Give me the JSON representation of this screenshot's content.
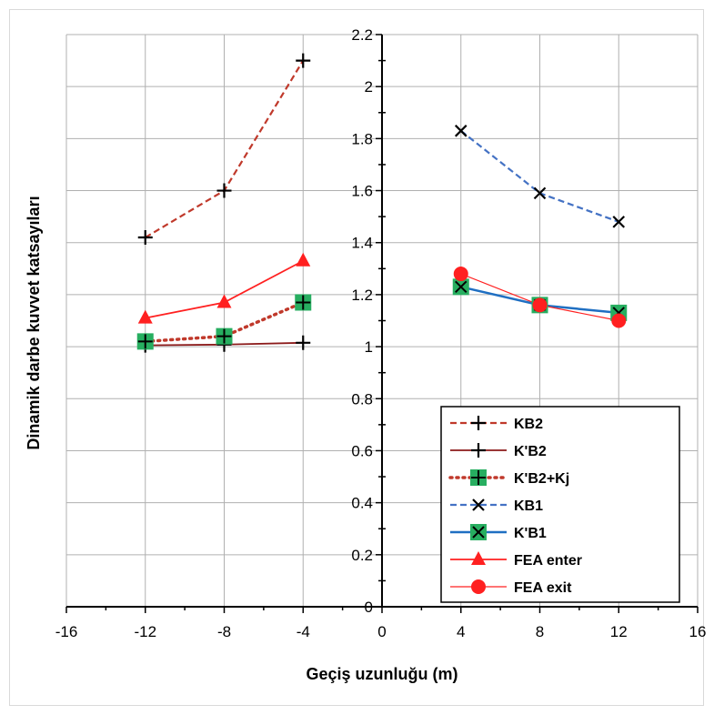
{
  "chart_data": {
    "type": "line",
    "xlabel": "Geçiş uzunluğu (m)",
    "ylabel": "Dinamik darbe kuvvet katsayıları",
    "xlim": [
      -16,
      16
    ],
    "ylim": [
      0,
      2.2
    ],
    "x_ticks": [
      -16,
      -12,
      -8,
      -4,
      0,
      4,
      8,
      12,
      16
    ],
    "x_tick_labels": [
      "-16",
      "-12",
      "-8",
      "-4",
      "0",
      "4",
      "8",
      "12",
      "16"
    ],
    "y_ticks": [
      0,
      0.2,
      0.4,
      0.6,
      0.8,
      1.0,
      1.2,
      1.4,
      1.6,
      1.8,
      2.0,
      2.2
    ],
    "y_tick_labels": [
      "0",
      "0.2",
      "0.4",
      "0.6",
      "0.8",
      "1",
      "1.2",
      "1.4",
      "1.6",
      "1.8",
      "2",
      "2.2"
    ],
    "grid": true,
    "legend_position": "bottom-right",
    "series": [
      {
        "name": "KB2",
        "x": [
          -12,
          -8,
          -4
        ],
        "y": [
          1.42,
          1.6,
          2.1
        ],
        "color": "#c0392b",
        "line": "dashed",
        "marker": "plus"
      },
      {
        "name": "K'B2",
        "x": [
          -12,
          -8,
          -4
        ],
        "y": [
          1.005,
          1.008,
          1.015
        ],
        "color": "#8b1a1a",
        "line": "solid",
        "marker": "plus"
      },
      {
        "name": "K'B2+Kj",
        "x": [
          -12,
          -8,
          -4
        ],
        "y": [
          1.02,
          1.04,
          1.17
        ],
        "color": "#c0392b",
        "line": "dotted",
        "marker": "green-square-plus"
      },
      {
        "name": "KB1",
        "x": [
          4,
          8,
          12
        ],
        "y": [
          1.83,
          1.59,
          1.48
        ],
        "color": "#4472c4",
        "line": "dashed",
        "marker": "x"
      },
      {
        "name": "K'B1",
        "x": [
          4,
          8,
          12
        ],
        "y": [
          1.23,
          1.16,
          1.13
        ],
        "color": "#1f6fc2",
        "line": "solid",
        "marker": "green-square-x"
      },
      {
        "name": "FEA enter",
        "x": [
          -12,
          -8,
          -4
        ],
        "y": [
          1.11,
          1.17,
          1.33
        ],
        "color": "#ff2020",
        "line": "solid",
        "marker": "triangle"
      },
      {
        "name": "FEA exit",
        "x": [
          4,
          8,
          12
        ],
        "y": [
          1.28,
          1.16,
          1.1
        ],
        "color": "#ff2020",
        "line": "solid",
        "marker": "circle"
      }
    ]
  }
}
